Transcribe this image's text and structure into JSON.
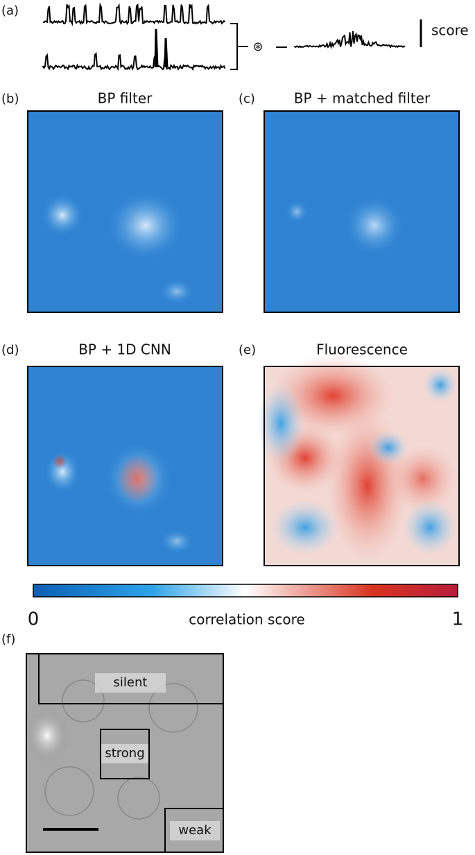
{
  "panel_a": {
    "label": "(a)",
    "operator": "⊛",
    "scale_label": "score"
  },
  "panel_b": {
    "label": "(b)",
    "title": "BP filter"
  },
  "panel_c": {
    "label": "(c)",
    "title": "BP + matched filter"
  },
  "panel_d": {
    "label": "(d)",
    "title": "BP + 1D CNN"
  },
  "panel_e": {
    "label": "(e)",
    "title": "Fluorescence"
  },
  "colorbar": {
    "label": "correlation score",
    "ticks": [
      0,
      1
    ]
  },
  "panel_f": {
    "label": "(f)",
    "regions": [
      "silent",
      "strong",
      "weak"
    ]
  }
}
